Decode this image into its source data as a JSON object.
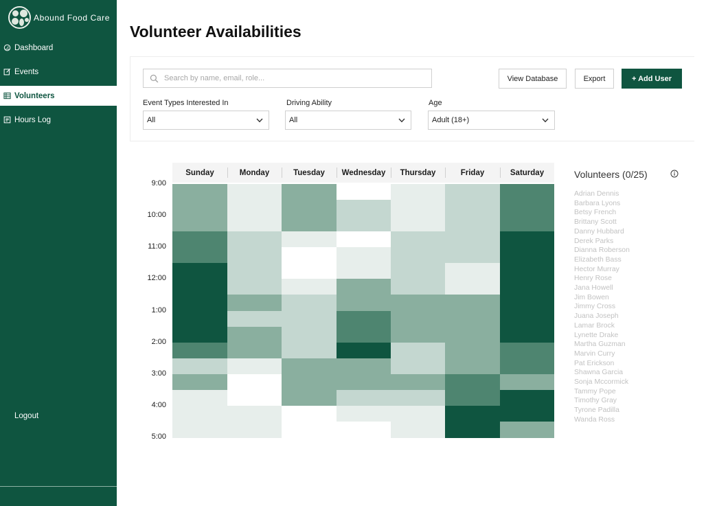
{
  "brand": {
    "name": "Abound Food Care"
  },
  "nav": [
    {
      "label": "Dashboard",
      "icon": "dashboard-icon",
      "active": false
    },
    {
      "label": "Events",
      "icon": "edit-icon",
      "active": false
    },
    {
      "label": "Volunteers",
      "icon": "table-icon",
      "active": true
    },
    {
      "label": "Hours Log",
      "icon": "log-icon",
      "active": false
    }
  ],
  "logout_label": "Logout",
  "page_title": "Volunteer Availabilities",
  "search": {
    "placeholder": "Search by name, email, role..."
  },
  "toolbar": {
    "view_db_label": "View Database",
    "export_label": "Export",
    "add_user_label": "+ Add User"
  },
  "filters": [
    {
      "label": "Event Types Interested In",
      "value": "All"
    },
    {
      "label": "Driving Ability",
      "value": "All"
    },
    {
      "label": "Age",
      "value": "Adult (18+)"
    }
  ],
  "colors": {
    "brand": "#0f5540",
    "scale": [
      "#ffffff",
      "#e7eeeb",
      "#c4d7d0",
      "#8aaf9f",
      "#4e8570",
      "#0f5540"
    ]
  },
  "heatmap": {
    "days": [
      "Sunday",
      "Monday",
      "Tuesday",
      "Wednesday",
      "Thursday",
      "Friday",
      "Saturday"
    ],
    "time_labels": [
      "9:00",
      "10:00",
      "11:00",
      "12:00",
      "1:00",
      "2:00",
      "3:00",
      "4:00",
      "5:00"
    ],
    "levels": [
      [
        3,
        1,
        3,
        0,
        1,
        2,
        4
      ],
      [
        3,
        1,
        3,
        2,
        1,
        2,
        4
      ],
      [
        3,
        1,
        3,
        2,
        1,
        2,
        4
      ],
      [
        4,
        2,
        1,
        0,
        2,
        2,
        5
      ],
      [
        4,
        2,
        0,
        1,
        2,
        2,
        5
      ],
      [
        5,
        2,
        0,
        1,
        2,
        1,
        5
      ],
      [
        5,
        2,
        1,
        3,
        2,
        1,
        5
      ],
      [
        5,
        3,
        2,
        3,
        3,
        3,
        5
      ],
      [
        5,
        2,
        2,
        4,
        3,
        3,
        5
      ],
      [
        5,
        3,
        2,
        4,
        3,
        3,
        5
      ],
      [
        4,
        3,
        2,
        5,
        2,
        3,
        4
      ],
      [
        2,
        1,
        3,
        3,
        2,
        3,
        4
      ],
      [
        3,
        0,
        3,
        3,
        3,
        4,
        3
      ],
      [
        1,
        0,
        3,
        2,
        2,
        4,
        5
      ],
      [
        1,
        1,
        0,
        1,
        1,
        5,
        5
      ],
      [
        1,
        1,
        0,
        0,
        1,
        5,
        3
      ]
    ]
  },
  "volunteers": {
    "title": "Volunteers (0/25)",
    "names": [
      "Adrian Dennis",
      "Barbara Lyons",
      "Betsy French",
      "Brittany Scott",
      "Danny Hubbard",
      "Derek Parks",
      "Dianna Roberson",
      "Elizabeth Bass",
      "Hector Murray",
      "Henry Rose",
      "Jana Howell",
      "Jim Bowen",
      "Jimmy Cross",
      "Juana Joseph",
      "Lamar Brock",
      "Lynette Drake",
      "Martha Guzman",
      "Marvin Curry",
      "Pat Erickson",
      "Shawna Garcia",
      "Sonja Mccormick",
      "Tammy Pope",
      "Timothy Gray",
      "Tyrone Padilla",
      "Wanda Ross"
    ]
  }
}
